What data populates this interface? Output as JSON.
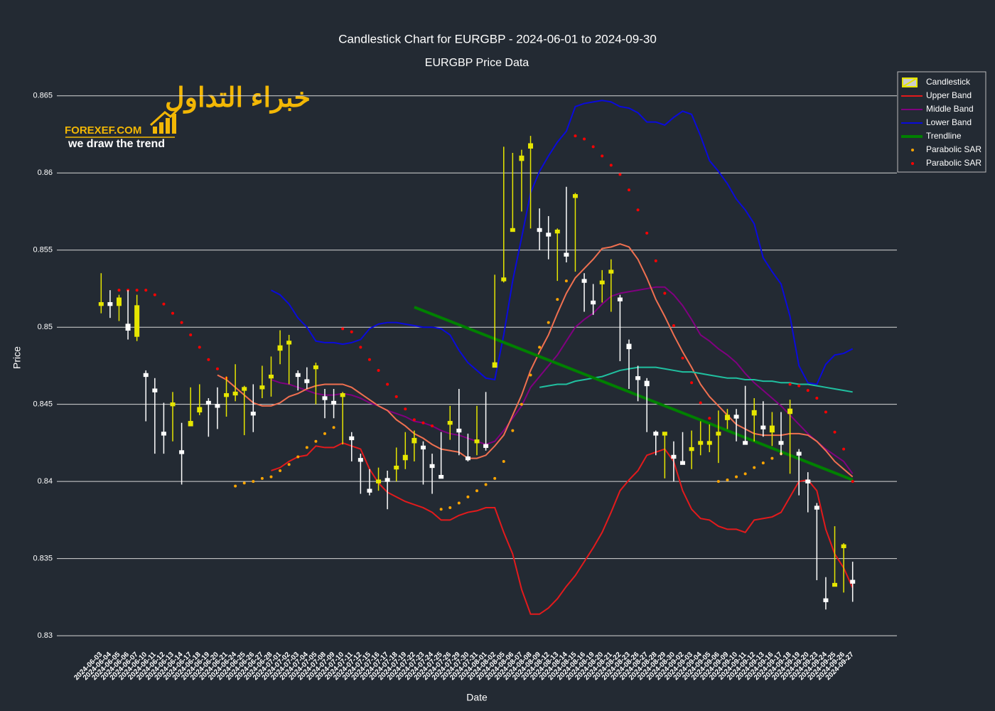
{
  "chart_data": {
    "type": "candlestick",
    "title": "Candlestick Chart for EURGBP - 2024-06-01 to 2024-09-30",
    "subtitle": "EURGBP Price Data",
    "x_label": "Date",
    "y_label": "Price",
    "legend": "top-right",
    "grid": true,
    "ylim": [
      0.8295,
      0.8666
    ],
    "yticks": [
      0.83,
      0.835,
      0.84,
      0.845,
      0.85,
      0.855,
      0.86,
      0.865
    ],
    "candle_name": "Candlestick",
    "increasing_color": "#e6e600",
    "decreasing_color": "#ffffff",
    "categories": [
      "2024-06-03",
      "2024-06-04",
      "2024-06-05",
      "2024-06-06",
      "2024-06-07",
      "2024-06-10",
      "2024-06-11",
      "2024-06-12",
      "2024-06-13",
      "2024-06-14",
      "2024-06-17",
      "2024-06-18",
      "2024-06-19",
      "2024-06-20",
      "2024-06-21",
      "2024-06-24",
      "2024-06-25",
      "2024-06-26",
      "2024-06-27",
      "2024-06-28",
      "2024-07-01",
      "2024-07-02",
      "2024-07-03",
      "2024-07-04",
      "2024-07-05",
      "2024-07-08",
      "2024-07-09",
      "2024-07-10",
      "2024-07-11",
      "2024-07-12",
      "2024-07-15",
      "2024-07-16",
      "2024-07-17",
      "2024-07-18",
      "2024-07-19",
      "2024-07-22",
      "2024-07-23",
      "2024-07-24",
      "2024-07-25",
      "2024-07-26",
      "2024-07-29",
      "2024-07-30",
      "2024-07-31",
      "2024-08-01",
      "2024-08-02",
      "2024-08-05",
      "2024-08-06",
      "2024-08-07",
      "2024-08-08",
      "2024-08-09",
      "2024-08-12",
      "2024-08-13",
      "2024-08-14",
      "2024-08-15",
      "2024-08-16",
      "2024-08-19",
      "2024-08-20",
      "2024-08-21",
      "2024-08-22",
      "2024-08-23",
      "2024-08-26",
      "2024-08-27",
      "2024-08-28",
      "2024-08-29",
      "2024-08-30",
      "2024-09-02",
      "2024-09-03",
      "2024-09-04",
      "2024-09-05",
      "2024-09-06",
      "2024-09-09",
      "2024-09-10",
      "2024-09-11",
      "2024-09-12",
      "2024-09-13",
      "2024-09-16",
      "2024-09-17",
      "2024-09-18",
      "2024-09-19",
      "2024-09-20",
      "2024-09-23",
      "2024-09-24",
      "2024-09-25",
      "2024-09-26",
      "2024-09-27"
    ],
    "open": [
      0.8514,
      0.8516,
      0.8514,
      0.8502,
      0.8494,
      0.847,
      0.846,
      0.8432,
      0.8449,
      0.842,
      0.8436,
      0.8445,
      0.8452,
      0.845,
      0.8455,
      0.8456,
      0.8459,
      0.8445,
      0.846,
      0.8467,
      0.8485,
      0.8489,
      0.847,
      0.8466,
      0.8473,
      0.8455,
      0.8452,
      0.8455,
      0.8429,
      0.8415,
      0.8395,
      0.8399,
      0.8402,
      0.8408,
      0.8414,
      0.8425,
      0.8423,
      0.8411,
      0.8404,
      0.8437,
      0.8434,
      0.8416,
      0.8425,
      0.8424,
      0.8474,
      0.853,
      0.8562,
      0.8608,
      0.8616,
      0.8564,
      0.8561,
      0.8561,
      0.8548,
      0.8584,
      0.8531,
      0.8517,
      0.8528,
      0.8535,
      0.8519,
      0.8489,
      0.8468,
      0.8465,
      0.8432,
      0.843,
      0.8417,
      0.8413,
      0.842,
      0.8424,
      0.8424,
      0.843,
      0.844,
      0.8443,
      0.8426,
      0.8443,
      0.8436,
      0.8432,
      0.8426,
      0.8444,
      0.8419,
      0.8401,
      0.8384,
      0.8324,
      0.8332,
      0.8357,
      0.8336
    ],
    "high": [
      0.8535,
      0.8524,
      0.8521,
      0.8524,
      0.8521,
      0.8472,
      0.8467,
      0.8451,
      0.8458,
      0.8438,
      0.8461,
      0.8463,
      0.8454,
      0.8461,
      0.8468,
      0.8476,
      0.8462,
      0.8463,
      0.8475,
      0.8481,
      0.8498,
      0.8495,
      0.8472,
      0.8474,
      0.8477,
      0.846,
      0.846,
      0.8458,
      0.8432,
      0.8418,
      0.8408,
      0.8409,
      0.8407,
      0.8422,
      0.8432,
      0.8433,
      0.8426,
      0.8418,
      0.8432,
      0.8449,
      0.846,
      0.8431,
      0.8449,
      0.8458,
      0.8534,
      0.8617,
      0.8613,
      0.8615,
      0.8624,
      0.8577,
      0.8572,
      0.8564,
      0.8591,
      0.8587,
      0.8535,
      0.8528,
      0.8537,
      0.8544,
      0.8521,
      0.8492,
      0.8475,
      0.8467,
      0.8433,
      0.8432,
      0.8426,
      0.8432,
      0.8433,
      0.8439,
      0.8437,
      0.8446,
      0.8447,
      0.8447,
      0.8462,
      0.8454,
      0.8452,
      0.8445,
      0.8445,
      0.8453,
      0.8421,
      0.8406,
      0.8386,
      0.8338,
      0.8371,
      0.836,
      0.8348
    ],
    "low": [
      0.8509,
      0.8506,
      0.8504,
      0.8492,
      0.8491,
      0.8439,
      0.8418,
      0.8418,
      0.8426,
      0.8398,
      0.8436,
      0.8443,
      0.8429,
      0.8434,
      0.8442,
      0.8452,
      0.843,
      0.8432,
      0.8454,
      0.8455,
      0.8476,
      0.8463,
      0.8459,
      0.846,
      0.845,
      0.8441,
      0.8441,
      0.8424,
      0.8413,
      0.8392,
      0.8391,
      0.8394,
      0.8382,
      0.84,
      0.8408,
      0.8413,
      0.8398,
      0.8392,
      0.8402,
      0.8427,
      0.8417,
      0.8413,
      0.8417,
      0.842,
      0.8474,
      0.8529,
      0.8562,
      0.8575,
      0.8564,
      0.855,
      0.8544,
      0.853,
      0.8542,
      0.8536,
      0.851,
      0.8508,
      0.8516,
      0.851,
      0.8478,
      0.846,
      0.8452,
      0.8432,
      0.8417,
      0.8402,
      0.84,
      0.8411,
      0.8408,
      0.8417,
      0.8419,
      0.8412,
      0.8434,
      0.8426,
      0.8424,
      0.8426,
      0.8429,
      0.8423,
      0.8417,
      0.8405,
      0.8391,
      0.838,
      0.8336,
      0.8317,
      0.8332,
      0.8328,
      0.8322
    ],
    "close": [
      0.8516,
      0.8514,
      0.8519,
      0.8498,
      0.8514,
      0.8468,
      0.8458,
      0.843,
      0.8451,
      0.8418,
      0.8439,
      0.8448,
      0.845,
      0.8448,
      0.8457,
      0.8458,
      0.8461,
      0.8443,
      0.8462,
      0.8469,
      0.8488,
      0.8491,
      0.8468,
      0.8464,
      0.8475,
      0.8453,
      0.845,
      0.8457,
      0.8427,
      0.8413,
      0.8393,
      0.8401,
      0.84,
      0.841,
      0.8417,
      0.8428,
      0.8421,
      0.8409,
      0.8402,
      0.8439,
      0.8432,
      0.8414,
      0.8427,
      0.8422,
      0.8477,
      0.8532,
      0.8564,
      0.8611,
      0.8619,
      0.8562,
      0.8559,
      0.8563,
      0.8546,
      0.8586,
      0.8529,
      0.8515,
      0.853,
      0.8537,
      0.8517,
      0.8486,
      0.8466,
      0.8462,
      0.843,
      0.8432,
      0.8415,
      0.8411,
      0.8422,
      0.8426,
      0.8426,
      0.8432,
      0.8443,
      0.8441,
      0.8424,
      0.8446,
      0.8434,
      0.8436,
      0.8424,
      0.8447,
      0.8417,
      0.8399,
      0.8382,
      0.8322,
      0.8334,
      0.8359,
      0.8334
    ],
    "series": [
      {
        "name": "Upper Band",
        "color": "#e31a1c",
        "mode": "lines",
        "values": [
          null,
          null,
          null,
          null,
          null,
          null,
          null,
          null,
          null,
          null,
          null,
          null,
          null,
          null,
          null,
          null,
          null,
          null,
          null,
          0.8407,
          0.8409,
          0.8413,
          0.8416,
          0.8417,
          0.8423,
          0.8422,
          0.8422,
          0.8425,
          0.8423,
          0.8421,
          0.8408,
          0.8399,
          0.8393,
          0.839,
          0.8387,
          0.8385,
          0.8383,
          0.838,
          0.8375,
          0.8375,
          0.8378,
          0.838,
          0.8381,
          0.8383,
          0.8383,
          0.8367,
          0.8353,
          0.833,
          0.8314,
          0.8314,
          0.8318,
          0.8324,
          0.8332,
          0.8339,
          0.8348,
          0.8357,
          0.8367,
          0.838,
          0.8394,
          0.8401,
          0.8407,
          0.8417,
          0.8419,
          0.8421,
          0.8413,
          0.8394,
          0.8382,
          0.8376,
          0.8375,
          0.8371,
          0.8369,
          0.8369,
          0.8367,
          0.8375,
          0.8376,
          0.8377,
          0.838,
          0.839,
          0.84,
          0.8401,
          0.8394,
          0.8369,
          0.8353,
          0.8344,
          0.8331
        ]
      },
      {
        "name": "Middle Band",
        "color": "#800080",
        "mode": "lines",
        "values": [
          null,
          null,
          null,
          null,
          null,
          null,
          null,
          null,
          null,
          null,
          null,
          null,
          null,
          null,
          null,
          null,
          null,
          null,
          null,
          0.8466,
          0.8464,
          0.8463,
          0.8461,
          0.8459,
          0.8457,
          0.8456,
          0.8456,
          0.8457,
          0.8456,
          0.8454,
          0.8451,
          0.8449,
          0.8446,
          0.8444,
          0.8442,
          0.8439,
          0.8438,
          0.8436,
          0.8433,
          0.8431,
          0.843,
          0.8428,
          0.8426,
          0.8424,
          0.8426,
          0.8433,
          0.8441,
          0.8449,
          0.8461,
          0.8468,
          0.8475,
          0.8482,
          0.8491,
          0.85,
          0.8505,
          0.8509,
          0.8515,
          0.852,
          0.8522,
          0.8523,
          0.8524,
          0.8525,
          0.8526,
          0.8526,
          0.8521,
          0.8514,
          0.8505,
          0.8495,
          0.8491,
          0.8486,
          0.8482,
          0.8477,
          0.847,
          0.8464,
          0.8459,
          0.8454,
          0.8449,
          0.8443,
          0.8437,
          0.8431,
          0.8426,
          0.8421,
          0.8417,
          0.8413,
          0.8405
        ]
      },
      {
        "name": "Lower Band",
        "color": "#0a0adc",
        "mode": "lines",
        "values": [
          null,
          null,
          null,
          null,
          null,
          null,
          null,
          null,
          null,
          null,
          null,
          null,
          null,
          null,
          null,
          null,
          null,
          null,
          null,
          0.8524,
          0.8521,
          0.8515,
          0.8506,
          0.85,
          0.8491,
          0.849,
          0.849,
          0.8489,
          0.849,
          0.8492,
          0.8499,
          0.8502,
          0.8503,
          0.8503,
          0.8502,
          0.8501,
          0.85,
          0.85,
          0.8499,
          0.8495,
          0.8485,
          0.8477,
          0.8472,
          0.8467,
          0.8466,
          0.8495,
          0.853,
          0.8558,
          0.8587,
          0.8601,
          0.8611,
          0.862,
          0.8627,
          0.8643,
          0.8645,
          0.8646,
          0.8647,
          0.8646,
          0.8643,
          0.8642,
          0.8639,
          0.8633,
          0.8633,
          0.8631,
          0.8636,
          0.864,
          0.8638,
          0.8624,
          0.8608,
          0.8601,
          0.8593,
          0.8583,
          0.8576,
          0.8567,
          0.8545,
          0.8536,
          0.8528,
          0.8507,
          0.8475,
          0.8464,
          0.8463,
          0.8476,
          0.8482,
          0.8483,
          0.8486
        ]
      },
      {
        "color": "#f07050",
        "mode": "lines",
        "values": [
          null,
          null,
          null,
          null,
          null,
          null,
          null,
          null,
          null,
          null,
          null,
          null,
          null,
          0.8469,
          0.8466,
          0.8461,
          0.8456,
          0.8451,
          0.8449,
          0.8449,
          0.8451,
          0.8455,
          0.8457,
          0.846,
          0.8462,
          0.8463,
          0.8463,
          0.8463,
          0.8461,
          0.8457,
          0.8453,
          0.8449,
          0.8446,
          0.844,
          0.8436,
          0.8431,
          0.8428,
          0.8424,
          0.8421,
          0.842,
          0.8419,
          0.8415,
          0.8415,
          0.8417,
          0.8423,
          0.843,
          0.8443,
          0.8456,
          0.8472,
          0.8484,
          0.8495,
          0.8509,
          0.8522,
          0.8532,
          0.8538,
          0.8544,
          0.8551,
          0.8552,
          0.8554,
          0.8552,
          0.8544,
          0.8532,
          0.8518,
          0.8507,
          0.8495,
          0.8484,
          0.8474,
          0.8463,
          0.8455,
          0.8449,
          0.8443,
          0.8437,
          0.8434,
          0.8431,
          0.843,
          0.843,
          0.843,
          0.8431,
          0.8431,
          0.843,
          0.8426,
          0.842,
          0.8413,
          0.8408,
          0.8403
        ]
      },
      {
        "color": "#20c0a0",
        "mode": "lines",
        "values": [
          null,
          null,
          null,
          null,
          null,
          null,
          null,
          null,
          null,
          null,
          null,
          null,
          null,
          null,
          null,
          null,
          null,
          null,
          null,
          null,
          null,
          null,
          null,
          null,
          null,
          null,
          null,
          null,
          null,
          null,
          null,
          null,
          null,
          null,
          null,
          null,
          null,
          null,
          null,
          null,
          null,
          null,
          null,
          null,
          null,
          null,
          null,
          null,
          null,
          0.8461,
          0.8462,
          0.8463,
          0.8463,
          0.8465,
          0.8466,
          0.8467,
          0.8468,
          0.847,
          0.8472,
          0.8473,
          0.8474,
          0.8474,
          0.8474,
          0.8473,
          0.8472,
          0.8471,
          0.8471,
          0.847,
          0.8469,
          0.8468,
          0.8467,
          0.8467,
          0.8466,
          0.8466,
          0.8465,
          0.8465,
          0.8464,
          0.8464,
          0.8463,
          0.8463,
          0.8462,
          0.8461,
          0.846,
          0.8459,
          0.8458
        ]
      },
      {
        "name": "Trendline",
        "color": "#008000",
        "mode": "lines",
        "width": 4,
        "x": [
          "2024-07-22",
          "2024-09-27"
        ],
        "values": [
          0.8513,
          0.8401
        ]
      },
      {
        "name": "Parabolic SAR",
        "color": "#ffa500",
        "mode": "markers",
        "values": [
          null,
          null,
          null,
          null,
          null,
          null,
          null,
          null,
          null,
          null,
          null,
          null,
          null,
          null,
          null,
          0.8397,
          0.8399,
          0.84,
          0.8402,
          0.8403,
          0.8407,
          0.8411,
          0.8416,
          0.8422,
          0.8426,
          0.8431,
          0.8435,
          null,
          null,
          null,
          null,
          null,
          null,
          null,
          null,
          null,
          null,
          null,
          0.8382,
          0.8383,
          0.8386,
          0.839,
          0.8394,
          0.8398,
          0.8402,
          0.8413,
          0.8433,
          0.845,
          0.8469,
          0.8487,
          0.8503,
          0.8518,
          0.853,
          null,
          null,
          null,
          null,
          null,
          null,
          null,
          null,
          null,
          null,
          null,
          null,
          null,
          null,
          null,
          null,
          0.84,
          0.8401,
          0.8403,
          0.8405,
          0.8409,
          0.8412,
          0.8415,
          0.8418,
          null,
          null,
          null,
          null,
          null,
          null,
          null,
          null
        ]
      },
      {
        "name": "Parabolic SAR",
        "color": "#ff0000",
        "mode": "markers",
        "values": [
          null,
          null,
          0.8524,
          0.8524,
          0.8524,
          0.8524,
          0.8521,
          0.8515,
          0.8509,
          0.8503,
          0.8495,
          0.8487,
          0.8479,
          0.8473,
          0.8467,
          null,
          null,
          null,
          null,
          null,
          null,
          null,
          null,
          null,
          null,
          null,
          null,
          0.8499,
          0.8497,
          0.8487,
          0.8479,
          0.8472,
          0.8463,
          0.8455,
          0.8447,
          0.844,
          0.8438,
          0.8436,
          null,
          null,
          null,
          null,
          null,
          null,
          null,
          null,
          null,
          null,
          null,
          null,
          null,
          null,
          null,
          0.8624,
          0.8622,
          0.8617,
          0.8611,
          0.8605,
          0.8599,
          0.8589,
          0.8576,
          0.8561,
          0.8543,
          0.8522,
          0.8501,
          0.848,
          0.8464,
          0.8451,
          0.8441,
          null,
          null,
          null,
          null,
          null,
          null,
          null,
          null,
          0.8463,
          0.8462,
          0.8459,
          0.8454,
          0.8445,
          0.8432,
          0.8421,
          0.84
        ]
      }
    ]
  },
  "logo": {
    "arabic": "خبراء التداول",
    "site": "FOREXEF.COM",
    "tagline": "we draw the trend"
  }
}
